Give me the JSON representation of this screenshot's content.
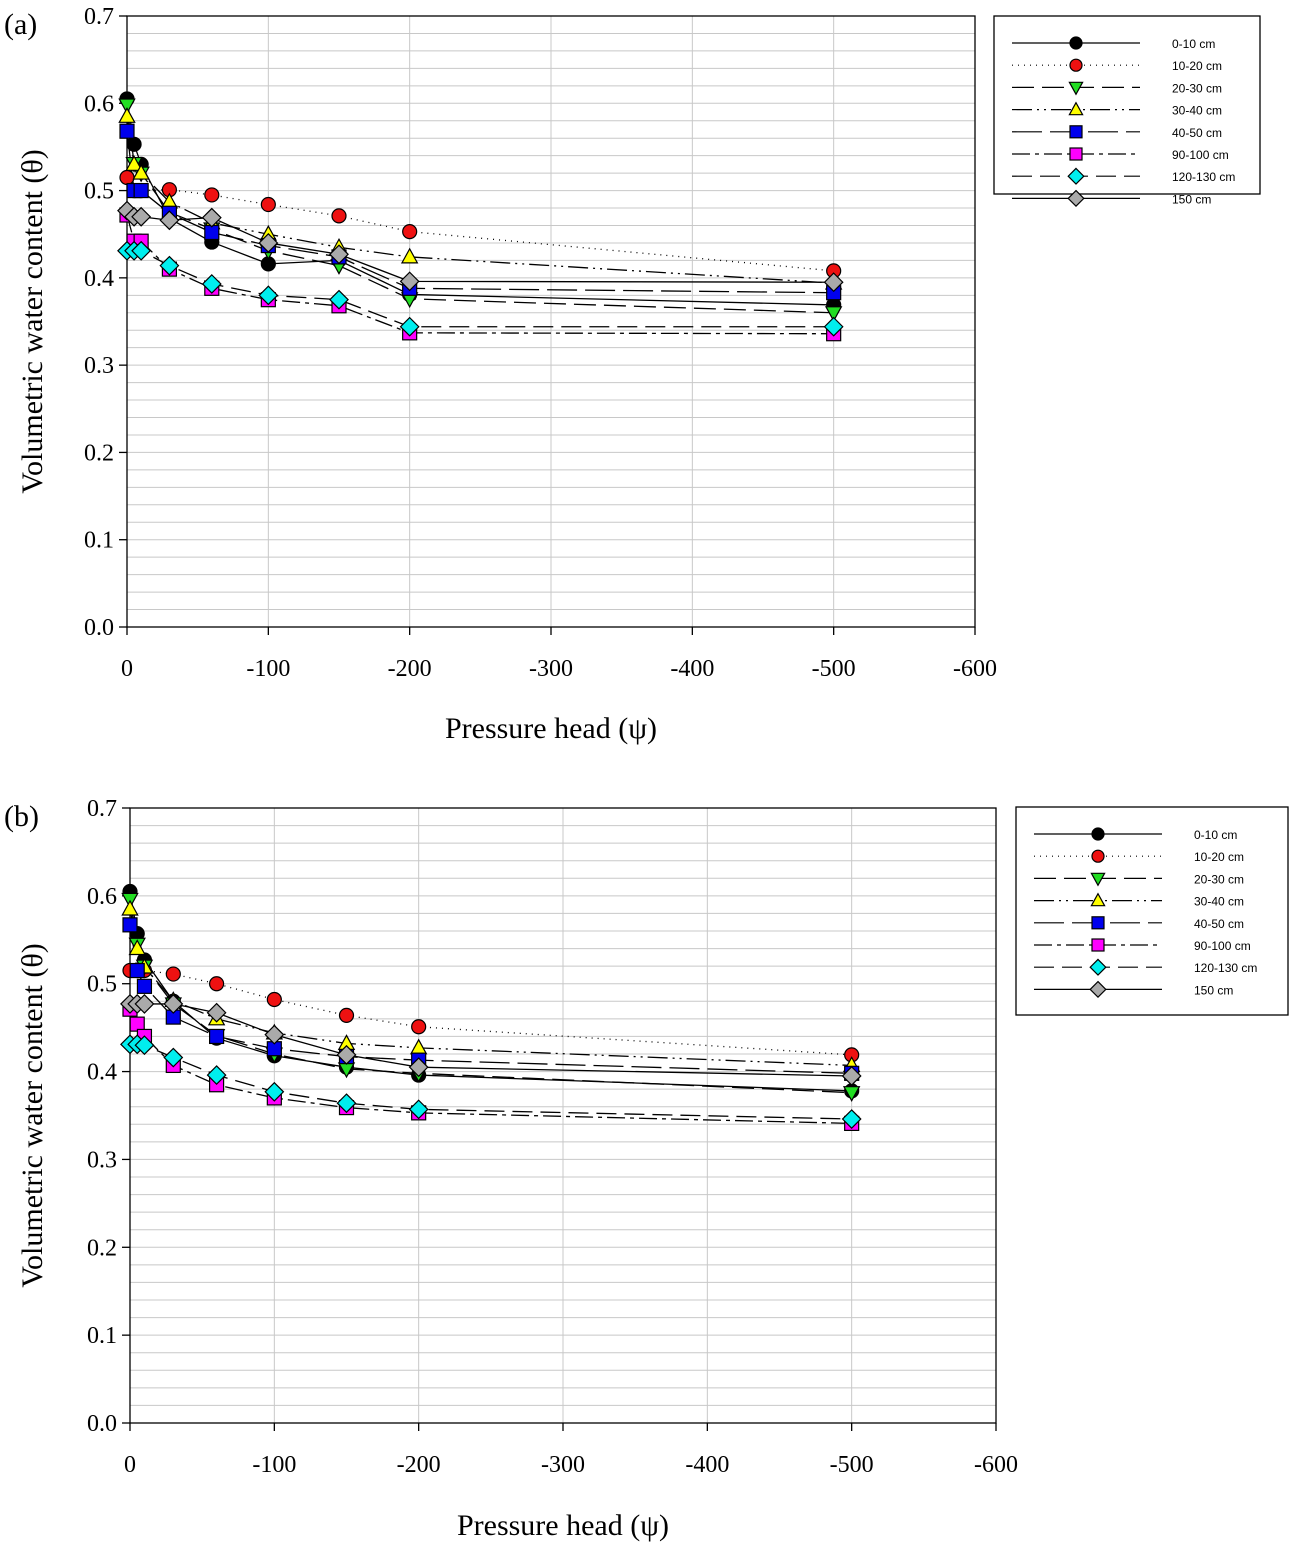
{
  "chart_data": [
    {
      "type": "line",
      "panel_label": "(a)",
      "xlabel": "Pressure head (ψ)",
      "ylabel": "Volumetric water content (θ)",
      "xlim": [
        0,
        -600
      ],
      "ylim": [
        0.0,
        0.7
      ],
      "xticks": [
        0,
        -100,
        -200,
        -300,
        -400,
        -500,
        -600
      ],
      "xtick_labels": [
        "0",
        "-100",
        "-200",
        "-300",
        "-400",
        "-500",
        "-600"
      ],
      "yticks": [
        0.0,
        0.1,
        0.2,
        0.3,
        0.4,
        0.5,
        0.6,
        0.7
      ],
      "ytick_labels": [
        "0.0",
        "0.1",
        "0.2",
        "0.3",
        "0.4",
        "0.5",
        "0.6",
        "0.7"
      ],
      "grid": true,
      "legend_position": "top-right",
      "x": [
        0,
        -5,
        -10,
        -30,
        -60,
        -100,
        -150,
        -200,
        -500
      ],
      "series": [
        {
          "name": "0-10 cm",
          "marker": "circle",
          "color": "#000000",
          "dash": "",
          "values": [
            0.605,
            0.553,
            0.53,
            0.468,
            0.441,
            0.416,
            0.42,
            0.381,
            0.369
          ]
        },
        {
          "name": "10-20 cm",
          "marker": "circle",
          "color": "#ee1111",
          "dash": "1,5",
          "values": [
            0.515,
            0.5,
            0.5,
            0.501,
            0.495,
            0.484,
            0.471,
            0.453,
            0.408
          ]
        },
        {
          "name": "20-30 cm",
          "marker": "triangle-down",
          "color": "#22dd22",
          "dash": "22,8",
          "values": [
            0.598,
            0.531,
            0.52,
            0.475,
            0.456,
            0.431,
            0.414,
            0.376,
            0.36
          ]
        },
        {
          "name": "30-40 cm",
          "marker": "triangle-up",
          "color": "#ffff00",
          "dash": "20,5,2,5,2,5",
          "values": [
            0.585,
            0.53,
            0.52,
            0.487,
            0.463,
            0.45,
            0.435,
            0.424,
            0.394
          ]
        },
        {
          "name": "40-50 cm",
          "marker": "square",
          "color": "#0000ee",
          "dash": "30,8",
          "values": [
            0.568,
            0.5,
            0.5,
            0.474,
            0.452,
            0.437,
            0.424,
            0.388,
            0.383
          ]
        },
        {
          "name": "90-100 cm",
          "marker": "square",
          "color": "#ff00ff",
          "dash": "18,5,4,5",
          "values": [
            0.472,
            0.442,
            0.442,
            0.41,
            0.388,
            0.375,
            0.368,
            0.337,
            0.336
          ]
        },
        {
          "name": "120-130 cm",
          "marker": "diamond",
          "color": "#00eeee",
          "dash": "20,8",
          "values": [
            0.431,
            0.431,
            0.431,
            0.414,
            0.393,
            0.38,
            0.375,
            0.344,
            0.344
          ]
        },
        {
          "name": "150 cm",
          "marker": "diamond",
          "color": "#aaaaaa",
          "dash": "",
          "values": [
            0.477,
            0.47,
            0.47,
            0.466,
            0.469,
            0.44,
            0.427,
            0.396,
            0.395
          ]
        }
      ]
    },
    {
      "type": "line",
      "panel_label": "(b)",
      "xlabel": "Pressure head (ψ)",
      "ylabel": "Volumetric water content (θ)",
      "xlim": [
        0,
        -600
      ],
      "ylim": [
        0.0,
        0.7
      ],
      "xticks": [
        0,
        -100,
        -200,
        -300,
        -400,
        -500,
        -600
      ],
      "xtick_labels": [
        "0",
        "-100",
        "-200",
        "-300",
        "-400",
        "-500",
        "-600"
      ],
      "yticks": [
        0.0,
        0.1,
        0.2,
        0.3,
        0.4,
        0.5,
        0.6,
        0.7
      ],
      "ytick_labels": [
        "0.0",
        "0.1",
        "0.2",
        "0.3",
        "0.4",
        "0.5",
        "0.6",
        "0.7"
      ],
      "grid": true,
      "legend_position": "top-right",
      "x": [
        0,
        -5,
        -10,
        -30,
        -60,
        -100,
        -150,
        -200,
        -500
      ],
      "series": [
        {
          "name": "0-10 cm",
          "marker": "circle",
          "color": "#000000",
          "dash": "",
          "values": [
            0.605,
            0.557,
            0.527,
            0.48,
            0.438,
            0.418,
            0.405,
            0.396,
            0.378
          ]
        },
        {
          "name": "10-20 cm",
          "marker": "circle",
          "color": "#ee1111",
          "dash": "1,5",
          "values": [
            0.515,
            0.515,
            0.515,
            0.511,
            0.5,
            0.482,
            0.464,
            0.451,
            0.419
          ]
        },
        {
          "name": "20-30 cm",
          "marker": "triangle-down",
          "color": "#22dd22",
          "dash": "22,8",
          "values": [
            0.596,
            0.545,
            0.52,
            0.477,
            0.441,
            0.42,
            0.403,
            0.398,
            0.376
          ]
        },
        {
          "name": "30-40 cm",
          "marker": "triangle-up",
          "color": "#ffff00",
          "dash": "20,5,2,5,2,5",
          "values": [
            0.585,
            0.54,
            0.519,
            0.481,
            0.46,
            0.444,
            0.432,
            0.427,
            0.407
          ]
        },
        {
          "name": "40-50 cm",
          "marker": "square",
          "color": "#0000ee",
          "dash": "30,8",
          "values": [
            0.567,
            0.515,
            0.497,
            0.462,
            0.44,
            0.426,
            0.417,
            0.413,
            0.398
          ]
        },
        {
          "name": "90-100 cm",
          "marker": "square",
          "color": "#ff00ff",
          "dash": "18,5,4,5",
          "values": [
            0.471,
            0.454,
            0.44,
            0.407,
            0.385,
            0.37,
            0.359,
            0.353,
            0.341
          ]
        },
        {
          "name": "120-130 cm",
          "marker": "diamond",
          "color": "#00eeee",
          "dash": "20,8",
          "values": [
            0.431,
            0.431,
            0.43,
            0.416,
            0.396,
            0.377,
            0.364,
            0.357,
            0.346
          ]
        },
        {
          "name": "150 cm",
          "marker": "diamond",
          "color": "#aaaaaa",
          "dash": "",
          "values": [
            0.477,
            0.477,
            0.477,
            0.477,
            0.467,
            0.442,
            0.419,
            0.405,
            0.395
          ]
        }
      ]
    }
  ]
}
